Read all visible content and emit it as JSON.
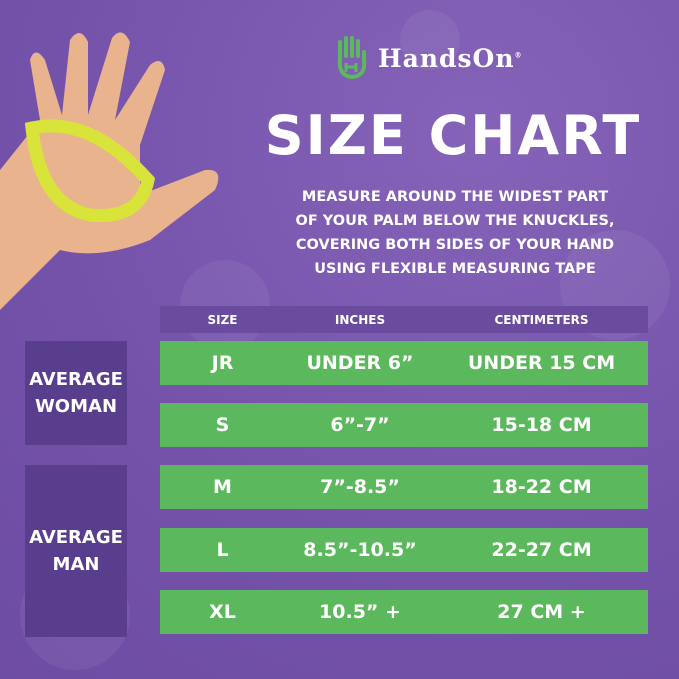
{
  "brand": {
    "name": "HandsOn",
    "registered": "®",
    "logo_color": "#5cb85c"
  },
  "title": "SIZE CHART",
  "instructions": [
    "MEASURE AROUND THE WIDEST PART",
    "OF YOUR PALM BELOW THE KNUCKLES,",
    "COVERING BOTH SIDES OF YOUR HAND",
    "USING FLEXIBLE MEASURING TAPE"
  ],
  "table": {
    "headers": [
      "SIZE",
      "INCHES",
      "CENTIMETERS"
    ],
    "rows": [
      {
        "size": "JR",
        "inches": "UNDER 6”",
        "cm": "UNDER 15 CM"
      },
      {
        "size": "S",
        "inches": "6”-7”",
        "cm": "15-18 CM"
      },
      {
        "size": "M",
        "inches": "7”-8.5”",
        "cm": "18-22 CM"
      },
      {
        "size": "L",
        "inches": "8.5”-10.5”",
        "cm": "22-27 CM"
      },
      {
        "size": "XL",
        "inches": "10.5” +",
        "cm": "27 CM +"
      }
    ],
    "groups": [
      {
        "label": "AVERAGE WOMAN"
      },
      {
        "label": "AVERAGE MAN"
      }
    ]
  },
  "colors": {
    "background": "#7452aa",
    "row": "#5cb85c",
    "group": "#5a3e8e",
    "header": "#6a4b9e",
    "tape": "#d8e43a"
  }
}
